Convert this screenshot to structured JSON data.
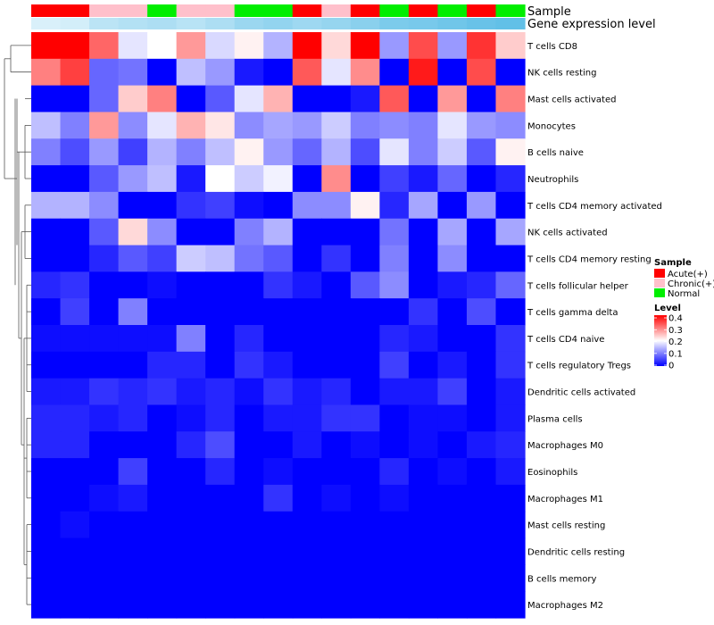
{
  "chart_data": {
    "type": "heatmap",
    "title": "",
    "row_labels": [
      "T cells CD8",
      "NK cells resting",
      "Mast cells activated",
      "Monocytes",
      "B cells naive",
      "Neutrophils",
      "T cells CD4 memory activated",
      "NK cells activated",
      "T cells CD4 memory resting",
      "T cells follicular helper",
      "T cells gamma delta",
      "T cells CD4 naive",
      "T cells regulatory  Tregs",
      "Dendritic cells activated",
      "Plasma cells",
      "Macrophages M0",
      "Eosinophils",
      "Macrophages M1",
      "Mast cells resting",
      "Dendritic cells resting",
      "B cells memory",
      "Macrophages M2"
    ],
    "column_annotations": {
      "sample_title": "Sample",
      "expression_title": "Gene expression level",
      "sample_groups": [
        "Acute(+)",
        "Acute(+)",
        "Chronic(+)",
        "Chronic(+)",
        "Normal",
        "Chronic(+)",
        "Chronic(+)",
        "Normal",
        "Normal",
        "Acute(+)",
        "Chronic(+)",
        "Acute(+)",
        "Normal",
        "Acute(+)",
        "Normal",
        "Acute(+)",
        "Normal"
      ],
      "expression_levels": [
        0.95,
        0.9,
        0.72,
        0.66,
        0.62,
        0.7,
        0.62,
        0.48,
        0.42,
        0.5,
        0.44,
        0.35,
        0.25,
        0.22,
        0.16,
        0.1,
        0.05
      ]
    },
    "values": [
      [
        0.4,
        0.4,
        0.32,
        0.18,
        0.2,
        0.28,
        0.17,
        0.21,
        0.14,
        0.4,
        0.23,
        0.4,
        0.12,
        0.34,
        0.12,
        0.36,
        0.24
      ],
      [
        0.3,
        0.35,
        0.08,
        0.09,
        0.0,
        0.15,
        0.12,
        0.02,
        0.0,
        0.33,
        0.18,
        0.29,
        0.0,
        0.38,
        0.0,
        0.34,
        0.0
      ],
      [
        0.0,
        0.0,
        0.08,
        0.24,
        0.3,
        0.0,
        0.07,
        0.18,
        0.26,
        0.0,
        0.0,
        0.02,
        0.33,
        0.0,
        0.28,
        0.0,
        0.3
      ],
      [
        0.15,
        0.1,
        0.28,
        0.11,
        0.18,
        0.26,
        0.22,
        0.11,
        0.13,
        0.12,
        0.16,
        0.1,
        0.11,
        0.1,
        0.18,
        0.12,
        0.11
      ],
      [
        0.1,
        0.06,
        0.12,
        0.05,
        0.14,
        0.1,
        0.15,
        0.21,
        0.12,
        0.08,
        0.14,
        0.06,
        0.18,
        0.1,
        0.16,
        0.07,
        0.21
      ],
      [
        0.0,
        0.0,
        0.07,
        0.12,
        0.15,
        0.02,
        0.2,
        0.16,
        0.19,
        0.0,
        0.29,
        0.0,
        0.05,
        0.02,
        0.08,
        0.0,
        0.03
      ],
      [
        0.14,
        0.14,
        0.11,
        0.0,
        0.0,
        0.04,
        0.05,
        0.01,
        0.0,
        0.11,
        0.11,
        0.21,
        0.03,
        0.13,
        0.0,
        0.12,
        0.0
      ],
      [
        0.0,
        0.0,
        0.07,
        0.23,
        0.11,
        0.0,
        0.0,
        0.1,
        0.14,
        0.0,
        0.0,
        0.0,
        0.09,
        0.0,
        0.13,
        0.0,
        0.13
      ],
      [
        0.0,
        0.0,
        0.03,
        0.07,
        0.05,
        0.16,
        0.15,
        0.09,
        0.07,
        0.0,
        0.04,
        0.0,
        0.1,
        0.0,
        0.11,
        0.0,
        0.0
      ],
      [
        0.03,
        0.04,
        0.0,
        0.0,
        0.01,
        0.0,
        0.0,
        0.0,
        0.04,
        0.02,
        0.0,
        0.07,
        0.11,
        0.0,
        0.02,
        0.03,
        0.08
      ],
      [
        0.0,
        0.05,
        0.0,
        0.1,
        0.0,
        0.0,
        0.0,
        0.0,
        0.0,
        0.0,
        0.0,
        0.0,
        0.0,
        0.04,
        0.0,
        0.06,
        0.0
      ],
      [
        0.01,
        0.01,
        0.01,
        0.01,
        0.01,
        0.1,
        0.0,
        0.03,
        0.0,
        0.0,
        0.0,
        0.0,
        0.03,
        0.02,
        0.0,
        0.0,
        0.04
      ],
      [
        0.0,
        0.0,
        0.0,
        0.0,
        0.03,
        0.03,
        0.0,
        0.04,
        0.02,
        0.0,
        0.0,
        0.0,
        0.05,
        0.0,
        0.02,
        0.0,
        0.04
      ],
      [
        0.02,
        0.02,
        0.04,
        0.03,
        0.04,
        0.02,
        0.03,
        0.01,
        0.04,
        0.02,
        0.03,
        0.0,
        0.02,
        0.02,
        0.05,
        0.0,
        0.02
      ],
      [
        0.03,
        0.03,
        0.02,
        0.03,
        0.0,
        0.01,
        0.03,
        0.0,
        0.02,
        0.02,
        0.04,
        0.04,
        0.0,
        0.01,
        0.01,
        0.0,
        0.02
      ],
      [
        0.03,
        0.03,
        0.0,
        0.0,
        0.0,
        0.03,
        0.06,
        0.0,
        0.0,
        0.02,
        0.0,
        0.01,
        0.0,
        0.01,
        0.0,
        0.02,
        0.03
      ],
      [
        0.0,
        0.0,
        0.0,
        0.05,
        0.0,
        0.0,
        0.03,
        0.0,
        0.01,
        0.0,
        0.0,
        0.0,
        0.03,
        0.0,
        0.01,
        0.0,
        0.02
      ],
      [
        0.0,
        0.0,
        0.01,
        0.02,
        0.0,
        0.0,
        0.0,
        0.0,
        0.04,
        0.0,
        0.01,
        0.0,
        0.01,
        0.0,
        0.0,
        0.0,
        0.0
      ],
      [
        0.0,
        0.01,
        0.0,
        0.0,
        0.0,
        0.0,
        0.0,
        0.0,
        0.0,
        0.0,
        0.0,
        0.0,
        0.0,
        0.0,
        0.0,
        0.0,
        0.0
      ],
      [
        0.0,
        0.0,
        0.0,
        0.0,
        0.0,
        0.0,
        0.0,
        0.0,
        0.0,
        0.0,
        0.0,
        0.0,
        0.0,
        0.0,
        0.0,
        0.0,
        0.0
      ],
      [
        0.0,
        0.0,
        0.0,
        0.0,
        0.0,
        0.0,
        0.0,
        0.0,
        0.0,
        0.0,
        0.0,
        0.0,
        0.0,
        0.0,
        0.0,
        0.0,
        0.0
      ],
      [
        0.0,
        0.0,
        0.0,
        0.0,
        0.0,
        0.0,
        0.0,
        0.0,
        0.0,
        0.0,
        0.0,
        0.0,
        0.0,
        0.0,
        0.0,
        0.0,
        0.0
      ]
    ],
    "color_scale": {
      "min": 0,
      "max": 0.4,
      "low_color": "#0000ff",
      "mid_color": "#ffffff",
      "high_color": "#ff0000",
      "mid_value": 0.2
    },
    "legend": {
      "sample_title": "Sample",
      "sample_entries": [
        {
          "label": "Acute(+)",
          "color": "#ff0000"
        },
        {
          "label": "Chronic(+)",
          "color": "#ffc0cb"
        },
        {
          "label": "Normal",
          "color": "#00ee00"
        }
      ],
      "level_title": "Level",
      "level_ticks": [
        "0.4",
        "0.3",
        "0.2",
        "0.1",
        "0"
      ],
      "placement": "right"
    },
    "expression_colors": {
      "light": "#e0f3fb",
      "dark": "#5bbde6"
    },
    "dendrogram": "rows"
  }
}
